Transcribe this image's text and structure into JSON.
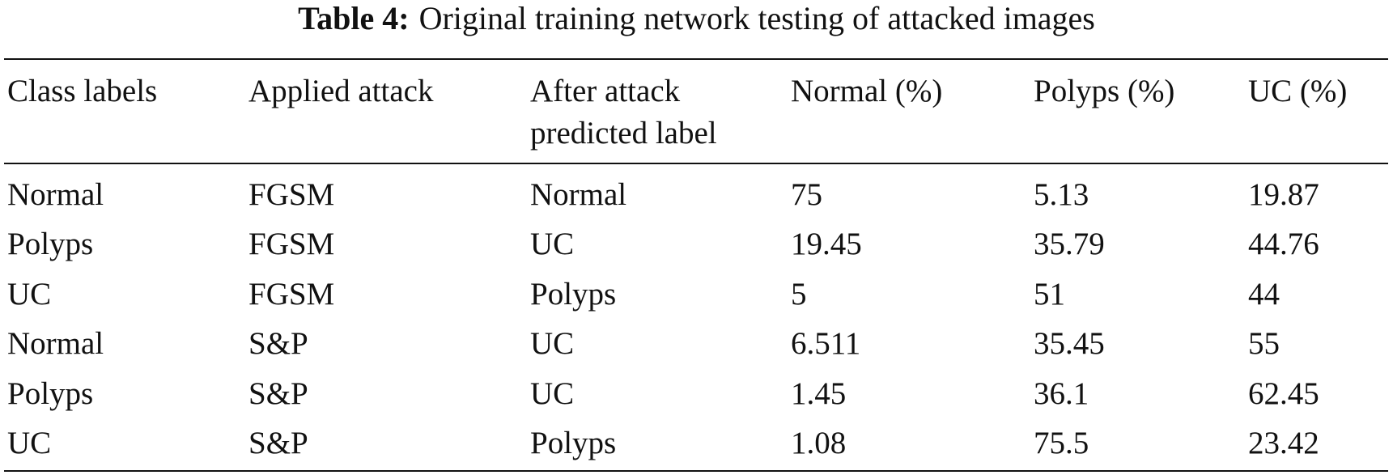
{
  "caption": {
    "label": "Table 4:",
    "text": "Original training network testing of attacked images"
  },
  "table": {
    "header": [
      "Class labels",
      "Applied attack",
      "After attack predicted label",
      "Normal (%)",
      "Polyps (%)",
      "UC (%)"
    ],
    "rows": [
      [
        "Normal",
        "FGSM",
        "Normal",
        "75",
        "5.13",
        "19.87"
      ],
      [
        "Polyps",
        "FGSM",
        "UC",
        "19.45",
        "35.79",
        "44.76"
      ],
      [
        "UC",
        "FGSM",
        "Polyps",
        "5",
        "51",
        "44"
      ],
      [
        "Normal",
        "S&P",
        "UC",
        "6.511",
        "35.45",
        "55"
      ],
      [
        "Polyps",
        "S&P",
        "UC",
        "1.45",
        "36.1",
        "62.45"
      ],
      [
        "UC",
        "S&P",
        "Polyps",
        "1.08",
        "75.5",
        "23.42"
      ]
    ]
  }
}
